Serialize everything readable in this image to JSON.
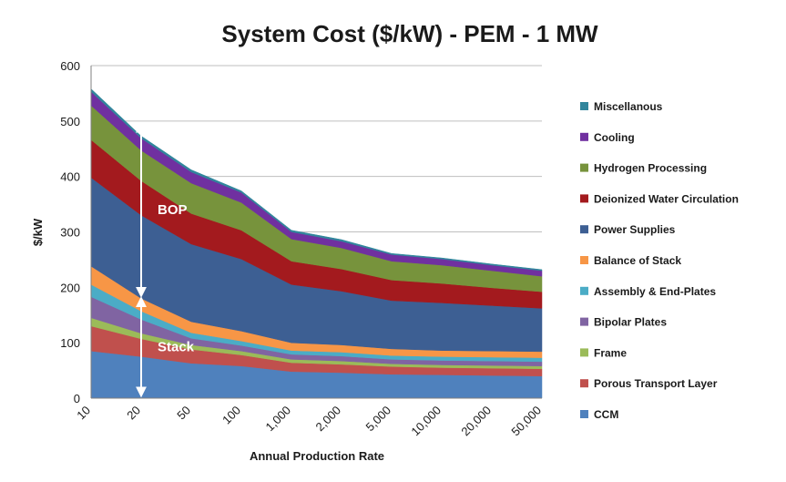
{
  "chart_data": {
    "type": "area",
    "stacked": true,
    "title": "System Cost ($/kW) - PEM - 1 MW",
    "xlabel": "Annual Production Rate",
    "ylabel": "$/kW",
    "ylim": [
      0,
      600
    ],
    "yticks": [
      0,
      100,
      200,
      300,
      400,
      500,
      600
    ],
    "grid": true,
    "legend_position": "right",
    "categories": [
      "10",
      "20",
      "50",
      "100",
      "1,000",
      "2,000",
      "5,000",
      "10,000",
      "20,000",
      "50,000"
    ],
    "series": [
      {
        "name": "CCM",
        "color": "#4f81bd",
        "values": [
          85,
          75,
          63,
          58,
          48,
          46,
          43,
          42,
          41,
          40
        ]
      },
      {
        "name": "Porous Transport Layer",
        "color": "#c0504d",
        "values": [
          45,
          32,
          25,
          20,
          16,
          15,
          14,
          13,
          13,
          13
        ]
      },
      {
        "name": "Frame",
        "color": "#9bbb59",
        "values": [
          15,
          10,
          8,
          7,
          6,
          6,
          5,
          5,
          5,
          5
        ]
      },
      {
        "name": "Bipolar Plates",
        "color": "#8064a2",
        "values": [
          38,
          25,
          12,
          10,
          9,
          9,
          8,
          8,
          8,
          8
        ]
      },
      {
        "name": "Assembly & End-Plates",
        "color": "#4bacc6",
        "values": [
          22,
          15,
          10,
          8,
          7,
          7,
          7,
          7,
          7,
          7
        ]
      },
      {
        "name": "Balance of Stack",
        "color": "#f79646",
        "values": [
          33,
          23,
          20,
          18,
          14,
          13,
          12,
          11,
          11,
          11
        ]
      },
      {
        "name": "Power Supplies",
        "color": "#3d5f93",
        "values": [
          160,
          150,
          140,
          130,
          105,
          97,
          87,
          86,
          82,
          78
        ]
      },
      {
        "name": "Deionized Water Circulation",
        "color": "#a31a1e",
        "values": [
          68,
          62,
          55,
          52,
          42,
          40,
          37,
          35,
          32,
          30
        ]
      },
      {
        "name": "Hydrogen Processing",
        "color": "#77933c",
        "values": [
          62,
          55,
          55,
          50,
          40,
          38,
          34,
          33,
          31,
          28
        ]
      },
      {
        "name": "Cooling",
        "color": "#7030a0",
        "values": [
          25,
          22,
          20,
          18,
          13,
          12,
          12,
          11,
          10,
          10
        ]
      },
      {
        "name": "Miscellanous",
        "color": "#31859c",
        "values": [
          5,
          4,
          4,
          3,
          3,
          3,
          2,
          2,
          2,
          2
        ]
      }
    ],
    "annotations": [
      {
        "label": "BOP",
        "from_value": 185,
        "to_value": 495,
        "category_index": 1
      },
      {
        "label": "Stack",
        "from_value": 5,
        "to_value": 180,
        "category_index": 1
      }
    ]
  }
}
